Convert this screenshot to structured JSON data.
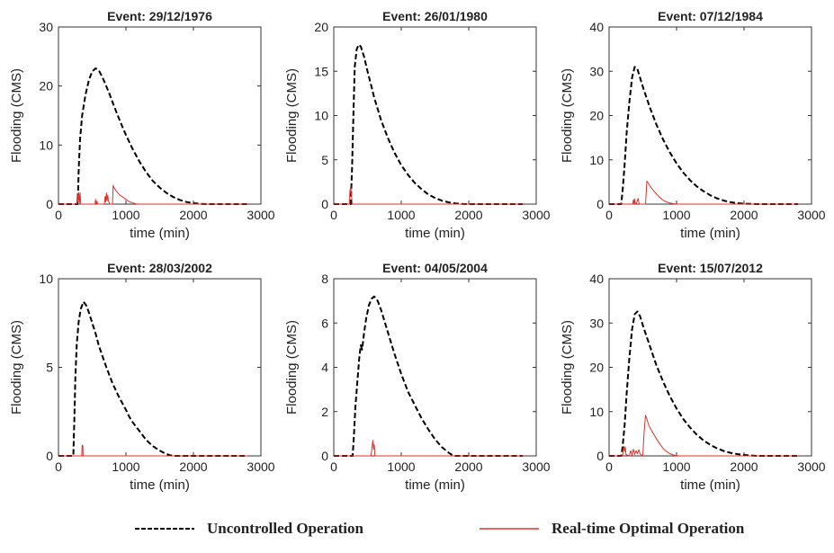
{
  "colors": {
    "uncontrolled": "#000000",
    "optimal": "#e0302a",
    "axis": "#333333",
    "text": "#222222"
  },
  "legend": {
    "uncontrolled_label": "Uncontrolled Operation",
    "optimal_label": "Real-time Optimal Operation"
  },
  "chart_data": [
    {
      "type": "line",
      "title": "Event: 29/12/1976",
      "xlabel": "time (min)",
      "ylabel": "Flooding (CMS)",
      "xlim": [
        0,
        3000
      ],
      "ylim": [
        0,
        30
      ],
      "xticks": [
        0,
        1000,
        2000,
        3000
      ],
      "yticks": [
        0,
        10,
        20,
        30
      ],
      "grid": false,
      "series": [
        {
          "key": "uncontrolled",
          "style": "dashed",
          "x": [
            0,
            280,
            290,
            300,
            320,
            350,
            400,
            450,
            500,
            550,
            600,
            650,
            700,
            750,
            800,
            850,
            900,
            950,
            1000,
            1100,
            1200,
            1300,
            1400,
            1500,
            1600,
            1700,
            1800,
            1900,
            2000,
            2100,
            2200,
            2400,
            2600,
            2800
          ],
          "y": [
            0,
            0,
            2,
            6,
            11,
            15,
            18.5,
            21,
            22.5,
            23,
            22.6,
            21.5,
            20.2,
            18.8,
            17.3,
            15.8,
            14.4,
            13,
            11.7,
            9.3,
            7.2,
            5.4,
            3.9,
            2.8,
            1.9,
            1.2,
            0.7,
            0.35,
            0.15,
            0.05,
            0,
            0,
            0,
            0
          ]
        },
        {
          "key": "optimal",
          "style": "solid",
          "x": [
            0,
            270,
            280,
            290,
            300,
            310,
            320,
            330,
            340,
            540,
            550,
            560,
            570,
            580,
            680,
            690,
            700,
            710,
            720,
            730,
            740,
            750,
            760,
            800,
            810,
            820,
            830,
            840,
            850,
            860,
            880,
            900,
            950,
            1000,
            1050,
            1100,
            1150,
            1200,
            2800
          ],
          "y": [
            0,
            0,
            1.8,
            0.3,
            2,
            0.2,
            1.9,
            0,
            0,
            0,
            0.8,
            0,
            0.5,
            0,
            0,
            1.3,
            0.4,
            1.9,
            0.6,
            1.5,
            0.5,
            0.3,
            0,
            0,
            3.2,
            2.9,
            2.6,
            2.5,
            2.3,
            2.2,
            1.9,
            1.6,
            1.2,
            0.8,
            0.4,
            0.2,
            0.05,
            0,
            0
          ]
        }
      ]
    },
    {
      "type": "line",
      "title": "Event: 26/01/1980",
      "xlabel": "time (min)",
      "ylabel": "Flooding (CMS)",
      "xlim": [
        0,
        3000
      ],
      "ylim": [
        0,
        20
      ],
      "xticks": [
        0,
        1000,
        2000,
        3000
      ],
      "yticks": [
        0,
        5,
        10,
        15,
        20
      ],
      "grid": false,
      "series": [
        {
          "key": "uncontrolled",
          "style": "dashed",
          "x": [
            0,
            250,
            270,
            290,
            310,
            340,
            370,
            400,
            450,
            500,
            550,
            600,
            700,
            800,
            900,
            1000,
            1100,
            1200,
            1300,
            1400,
            1500,
            1600,
            1700,
            1800,
            1900,
            2000,
            2200,
            2400,
            2600,
            2800
          ],
          "y": [
            0,
            0,
            4,
            10,
            15.5,
            17.5,
            18,
            17.8,
            16.6,
            15,
            13.5,
            12,
            9.5,
            7.5,
            5.8,
            4.4,
            3.3,
            2.4,
            1.7,
            1.1,
            0.7,
            0.4,
            0.2,
            0.08,
            0.02,
            0,
            0,
            0,
            0,
            0
          ]
        },
        {
          "key": "optimal",
          "style": "solid",
          "x": [
            0,
            230,
            240,
            250,
            260,
            270,
            280,
            2800
          ],
          "y": [
            0,
            0,
            1.5,
            2,
            1.2,
            0.3,
            0,
            0
          ]
        }
      ]
    },
    {
      "type": "line",
      "title": "Event: 07/12/1984",
      "xlabel": "time (min)",
      "ylabel": "Flooding (CMS)",
      "xlim": [
        0,
        3000
      ],
      "ylim": [
        0,
        40
      ],
      "xticks": [
        0,
        1000,
        2000,
        3000
      ],
      "yticks": [
        0,
        10,
        20,
        30,
        40
      ],
      "grid": false,
      "series": [
        {
          "key": "uncontrolled",
          "style": "dashed",
          "x": [
            0,
            180,
            200,
            230,
            260,
            300,
            340,
            380,
            420,
            460,
            500,
            600,
            700,
            800,
            900,
            1000,
            1100,
            1200,
            1300,
            1400,
            1500,
            1600,
            1700,
            1800,
            1900,
            2000,
            2200,
            2400,
            2600,
            2800
          ],
          "y": [
            0,
            0,
            3,
            9,
            16,
            23,
            28.5,
            31,
            30.5,
            28.5,
            26.5,
            22,
            18,
            14.6,
            11.7,
            9.2,
            7.1,
            5.4,
            4,
            2.9,
            2,
            1.3,
            0.8,
            0.45,
            0.2,
            0.08,
            0,
            0,
            0,
            0
          ]
        },
        {
          "key": "optimal",
          "style": "solid",
          "x": [
            0,
            350,
            360,
            370,
            380,
            390,
            400,
            420,
            430,
            440,
            450,
            540,
            560,
            580,
            600,
            650,
            700,
            750,
            800,
            850,
            900,
            950,
            1000,
            1050,
            2800
          ],
          "y": [
            0,
            0,
            1,
            0,
            1.2,
            0,
            0,
            0.8,
            1.3,
            0.4,
            0,
            0,
            5.2,
            4.8,
            4.2,
            3.2,
            2.3,
            1.5,
            0.9,
            0.5,
            0.25,
            0.1,
            0.03,
            0,
            0
          ]
        }
      ]
    },
    {
      "type": "line",
      "title": "Event: 28/03/2002",
      "xlabel": "time (min)",
      "ylabel": "Flooding (CMS)",
      "xlim": [
        0,
        3000
      ],
      "ylim": [
        0,
        10
      ],
      "xticks": [
        0,
        1000,
        2000,
        3000
      ],
      "yticks": [
        0,
        5,
        10
      ],
      "grid": false,
      "series": [
        {
          "key": "uncontrolled",
          "style": "dashed",
          "x": [
            0,
            220,
            235,
            250,
            270,
            300,
            330,
            370,
            410,
            450,
            500,
            550,
            600,
            700,
            800,
            900,
            1000,
            1050,
            1100,
            1200,
            1300,
            1400,
            1500,
            1600,
            1650,
            1700,
            1800,
            2000,
            2200,
            2400,
            2600,
            2800
          ],
          "y": [
            0,
            0,
            2,
            4.5,
            6.3,
            7.6,
            8.3,
            8.7,
            8.5,
            8.1,
            7.5,
            6.9,
            6.2,
            5.1,
            4.1,
            3.3,
            2.6,
            2.2,
            1.9,
            1.4,
            0.9,
            0.55,
            0.3,
            0.1,
            0.04,
            0,
            0,
            0,
            0,
            0,
            0,
            0
          ]
        },
        {
          "key": "optimal",
          "style": "solid",
          "x": [
            0,
            345,
            350,
            360,
            365,
            2800
          ],
          "y": [
            0,
            0,
            0.6,
            0.6,
            0,
            0
          ]
        }
      ]
    },
    {
      "type": "line",
      "title": "Event: 04/05/2004",
      "xlabel": "time (min)",
      "ylabel": "Flooding (CMS)",
      "xlim": [
        0,
        3000
      ],
      "ylim": [
        0,
        8
      ],
      "xticks": [
        0,
        1000,
        2000,
        3000
      ],
      "yticks": [
        0,
        2,
        4,
        6,
        8
      ],
      "grid": false,
      "series": [
        {
          "key": "uncontrolled",
          "style": "dashed",
          "x": [
            0,
            280,
            300,
            320,
            350,
            380,
            400,
            420,
            450,
            480,
            520,
            560,
            600,
            650,
            700,
            800,
            900,
            1000,
            1100,
            1200,
            1300,
            1400,
            1500,
            1600,
            1700,
            1750,
            1800,
            2000,
            2200,
            2400,
            2600,
            2800
          ],
          "y": [
            0,
            0,
            1,
            2.2,
            3.4,
            4.5,
            5,
            4.8,
            5.6,
            6.2,
            6.8,
            7.1,
            7.2,
            7,
            6.6,
            5.6,
            4.6,
            3.7,
            2.9,
            2.3,
            1.7,
            1.2,
            0.75,
            0.4,
            0.15,
            0.05,
            0,
            0,
            0,
            0,
            0,
            0
          ]
        },
        {
          "key": "optimal",
          "style": "solid",
          "x": [
            0,
            550,
            560,
            570,
            580,
            590,
            600,
            610,
            2800
          ],
          "y": [
            0,
            0,
            0.2,
            0.5,
            0.7,
            0.3,
            0.5,
            0,
            0
          ]
        }
      ]
    },
    {
      "type": "line",
      "title": "Event: 15/07/2012",
      "xlabel": "time (min)",
      "ylabel": "Flooding (CMS)",
      "xlim": [
        0,
        3000
      ],
      "ylim": [
        0,
        40
      ],
      "xticks": [
        0,
        1000,
        2000,
        3000
      ],
      "yticks": [
        0,
        10,
        20,
        30,
        40
      ],
      "grid": false,
      "series": [
        {
          "key": "uncontrolled",
          "style": "dashed",
          "x": [
            0,
            180,
            200,
            230,
            260,
            300,
            340,
            380,
            420,
            460,
            500,
            600,
            700,
            800,
            900,
            1000,
            1100,
            1200,
            1300,
            1400,
            1500,
            1600,
            1700,
            1800,
            1900,
            2000,
            2100,
            2200,
            2400,
            2600,
            2800
          ],
          "y": [
            0,
            0,
            2,
            7,
            14,
            22,
            28.5,
            32,
            32.6,
            31.5,
            29.5,
            25,
            20.5,
            16.8,
            13.5,
            10.7,
            8.3,
            6.4,
            4.8,
            3.5,
            2.5,
            1.7,
            1.1,
            0.7,
            0.4,
            0.2,
            0.08,
            0,
            0,
            0,
            0
          ]
        },
        {
          "key": "optimal",
          "style": "solid",
          "x": [
            0,
            200,
            210,
            220,
            230,
            240,
            250,
            300,
            320,
            340,
            360,
            380,
            400,
            420,
            440,
            460,
            500,
            520,
            540,
            560,
            580,
            600,
            650,
            700,
            750,
            800,
            850,
            900,
            950,
            1000,
            1050,
            1100,
            2800
          ],
          "y": [
            0,
            0,
            1.5,
            2.2,
            1,
            2,
            0.3,
            0,
            1.2,
            0.2,
            1.5,
            0.3,
            1.2,
            0.5,
            1.4,
            0.4,
            0,
            5.5,
            9.2,
            8.3,
            7.3,
            6.5,
            5.2,
            3.9,
            2.7,
            1.7,
            1,
            0.5,
            0.2,
            0.05,
            0,
            0,
            0
          ]
        }
      ]
    }
  ]
}
